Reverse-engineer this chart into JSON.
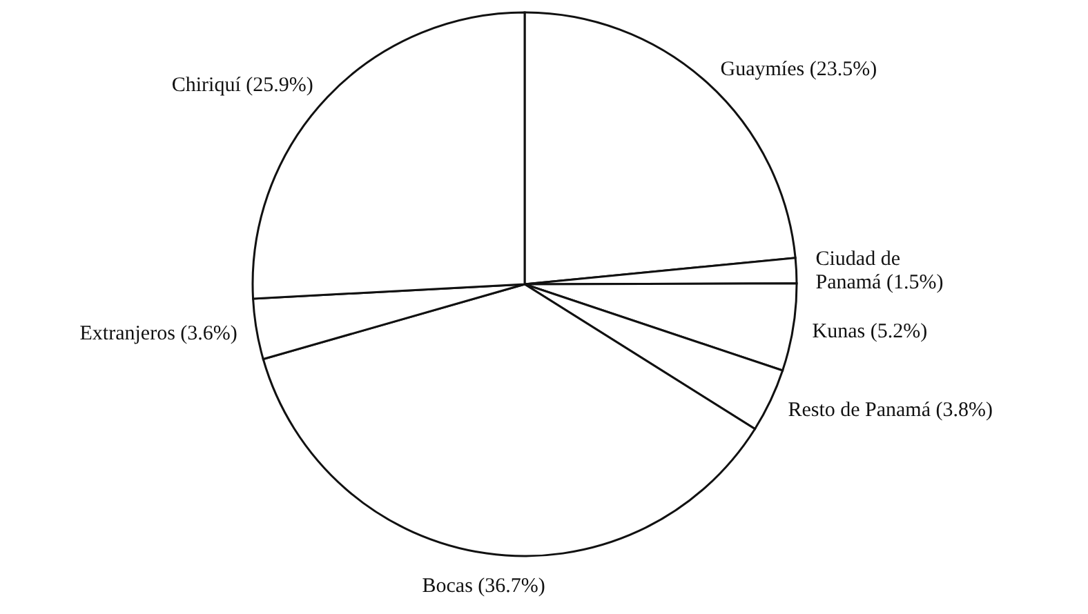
{
  "chart_data": {
    "type": "pie",
    "categories": [
      "Guaymíes",
      "Ciudad de Panamá",
      "Kunas",
      "Resto de Panamá",
      "Bocas",
      "Extranjeros",
      "Chiriquí"
    ],
    "values": [
      23.5,
      1.5,
      5.2,
      3.8,
      36.7,
      3.6,
      25.9
    ],
    "value_labels": [
      "(23.5%)",
      "(1.5%)",
      "(5.2%)",
      "(3.8%)",
      "(36.7%)",
      "(3.6%)",
      "(25.9%)"
    ],
    "colors": [
      "#ffffff",
      "#ffffff",
      "#ffffff",
      "#ffffff",
      "#ffffff",
      "#ffffff",
      "#ffffff"
    ]
  }
}
